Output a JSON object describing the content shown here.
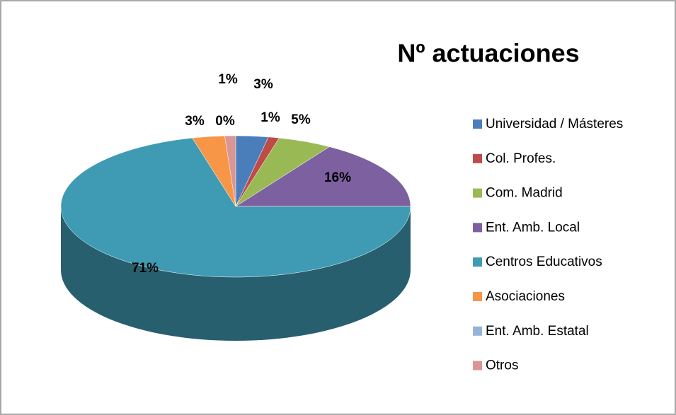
{
  "chart_data": {
    "type": "pie",
    "title": "Nº actuaciones",
    "categories": [
      "Universidad / Másteres",
      "Col. Profes.",
      "Com. Madrid",
      "Ent. Amb. Local",
      "Centros Educativos",
      "Asociaciones",
      "Ent. Amb. Estatal",
      "Otros"
    ],
    "values": [
      3,
      1,
      5,
      16,
      71,
      3,
      0,
      1
    ],
    "value_labels": [
      "3%",
      "1%",
      "5%",
      "16%",
      "71%",
      "3%",
      "0%",
      "1%"
    ],
    "colors": [
      "#4a7ebb",
      "#be4b48",
      "#98b954",
      "#7d60a0",
      "#3f9ab3",
      "#f79646",
      "#95b3d7",
      "#d99694"
    ],
    "legend": "right"
  }
}
